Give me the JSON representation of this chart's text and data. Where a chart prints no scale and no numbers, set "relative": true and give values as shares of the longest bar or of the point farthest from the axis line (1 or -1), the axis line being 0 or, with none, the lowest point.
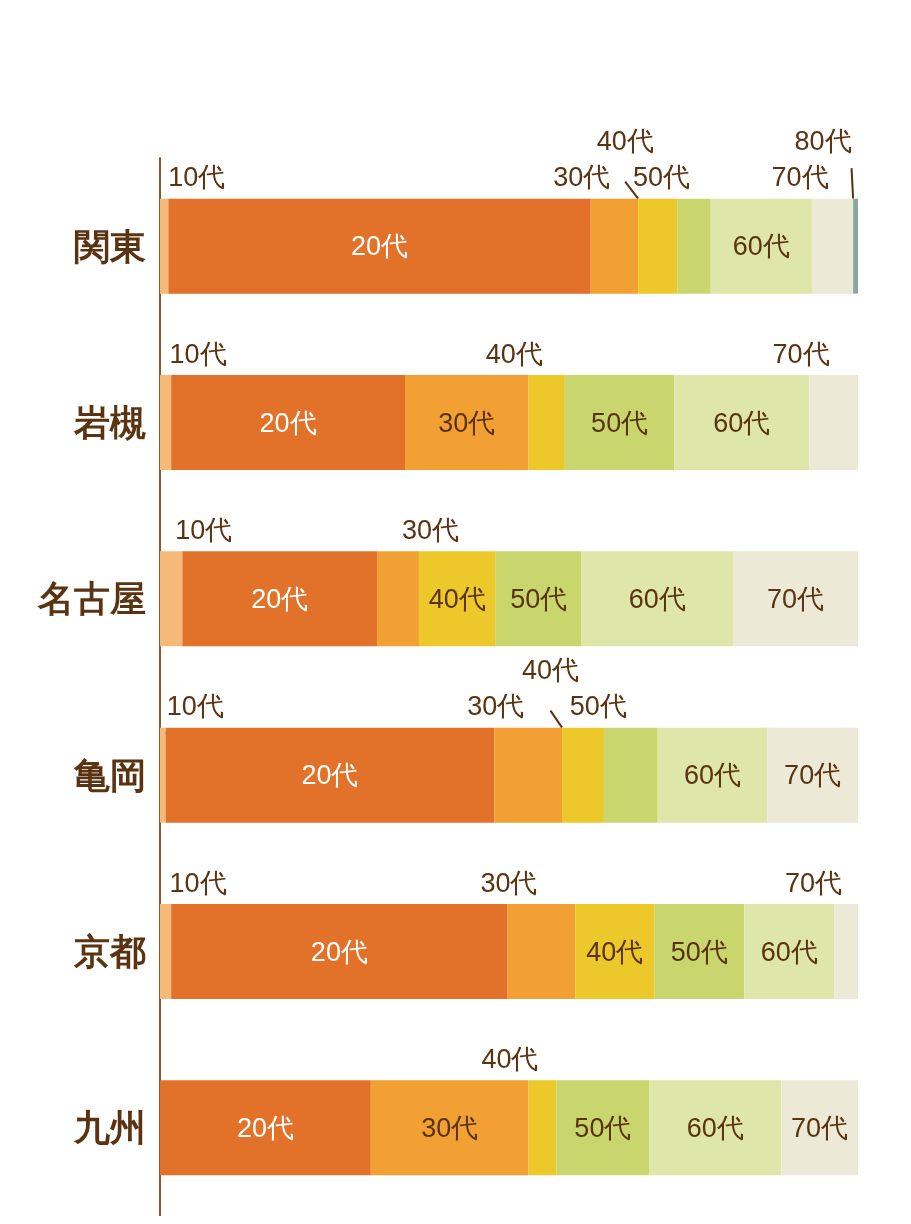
{
  "chart_data": {
    "type": "bar",
    "orientation": "horizontal",
    "stacked": true,
    "relative": true,
    "legend": false,
    "categories": [
      "関東",
      "岩槻",
      "名古屋",
      "亀岡",
      "京都",
      "九州"
    ],
    "series": [
      {
        "name": "10代",
        "color": "#f5b97a",
        "values": [
          0.012,
          0.016,
          0.032,
          0.008,
          0.016,
          null
        ]
      },
      {
        "name": "20代",
        "color": "#e2722a",
        "values": [
          0.605,
          0.335,
          0.279,
          0.471,
          0.482,
          0.302
        ]
      },
      {
        "name": "30代",
        "color": "#f2a033",
        "values": [
          0.068,
          0.177,
          0.06,
          0.097,
          0.097,
          0.226
        ]
      },
      {
        "name": "40代",
        "color": "#ecc82b",
        "values": [
          0.056,
          0.052,
          0.11,
          0.06,
          0.113,
          0.04
        ]
      },
      {
        "name": "50代",
        "color": "#c9d66e",
        "values": [
          0.048,
          0.157,
          0.123,
          0.077,
          0.129,
          0.133
        ]
      },
      {
        "name": "60代",
        "color": "#dfe6a9",
        "values": [
          0.145,
          0.193,
          0.217,
          0.157,
          0.129,
          0.189
        ]
      },
      {
        "name": "70代",
        "color": "#ece9d6",
        "values": [
          0.059,
          0.07,
          0.179,
          0.13,
          0.034,
          0.11
        ]
      },
      {
        "name": "80代",
        "color": "#8aa8a0",
        "values": [
          0.007,
          null,
          null,
          null,
          null,
          null
        ]
      }
    ]
  }
}
